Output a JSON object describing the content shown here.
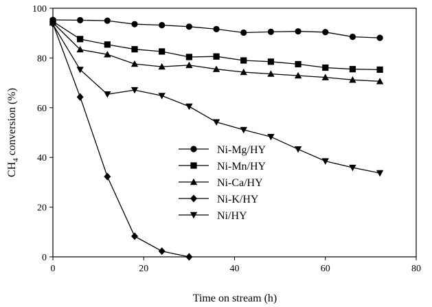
{
  "chart_data": {
    "type": "line",
    "title": "",
    "xlabel": "Time on stream (h)",
    "ylabel_main": "CH",
    "ylabel_sub": "4",
    "ylabel_rest": " conversion (%)",
    "xlim": [
      0,
      80
    ],
    "ylim": [
      0,
      100
    ],
    "xticks": [
      0,
      20,
      40,
      60,
      80
    ],
    "yticks": [
      0,
      20,
      40,
      60,
      80,
      100
    ],
    "grid": false,
    "legend_position": "lower-left-center",
    "series": [
      {
        "name": "Ni-Mg/HY",
        "marker": "circle",
        "x": [
          0,
          6,
          12,
          18,
          24,
          30,
          36,
          42,
          48,
          54,
          60,
          66,
          72
        ],
        "y": [
          95.3,
          95.2,
          95.0,
          93.6,
          93.2,
          92.6,
          91.6,
          90.2,
          90.5,
          90.7,
          90.4,
          88.5,
          88.1
        ]
      },
      {
        "name": "Ni-Mn/HY",
        "marker": "square",
        "x": [
          0,
          6,
          12,
          18,
          24,
          30,
          36,
          42,
          48,
          54,
          60,
          66,
          72
        ],
        "y": [
          94.7,
          87.6,
          85.4,
          83.5,
          82.6,
          80.4,
          80.6,
          79.0,
          78.5,
          77.5,
          76.1,
          75.5,
          75.3
        ]
      },
      {
        "name": "Ni-Ca/HY",
        "marker": "triangle-up",
        "x": [
          0,
          6,
          12,
          18,
          24,
          30,
          36,
          42,
          48,
          54,
          60,
          66,
          72
        ],
        "y": [
          94.2,
          83.4,
          81.4,
          77.6,
          76.5,
          77.1,
          75.5,
          74.3,
          73.6,
          72.9,
          72.2,
          71.2,
          70.6
        ]
      },
      {
        "name": "Ni-K/HY",
        "marker": "diamond",
        "x": [
          0,
          6,
          12,
          18,
          24,
          30
        ],
        "y": [
          93.8,
          64.3,
          32.3,
          8.3,
          2.3,
          0.0
        ]
      },
      {
        "name": "Ni/HY",
        "marker": "triangle-down",
        "x": [
          0,
          6,
          12,
          18,
          24,
          30,
          36,
          42,
          48,
          54,
          60,
          66,
          72
        ],
        "y": [
          93.5,
          75.3,
          65.4,
          67.1,
          64.8,
          60.5,
          54.2,
          51.1,
          48.3,
          43.3,
          38.5,
          35.9,
          33.7
        ]
      }
    ]
  }
}
